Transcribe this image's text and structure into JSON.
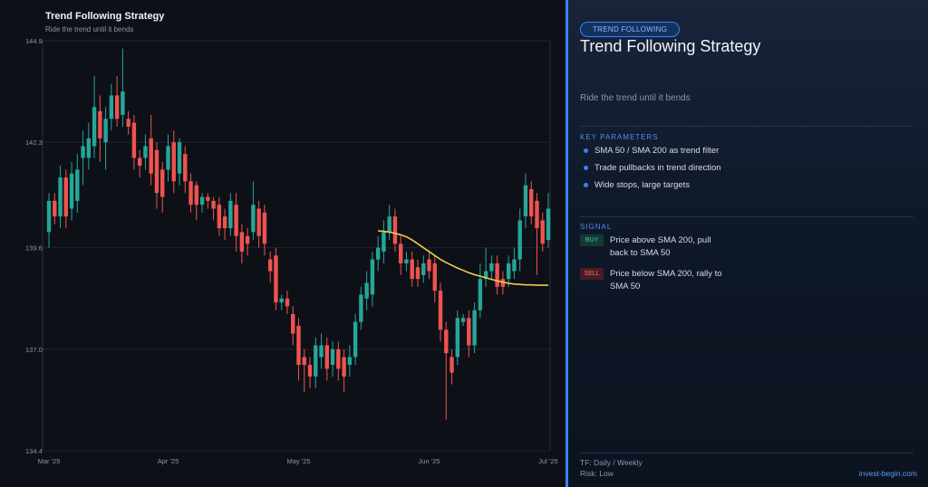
{
  "chart_data": {
    "type": "candlestick",
    "title": "Trend Following Strategy",
    "subtitle": "Ride the trend until it bends",
    "categories": [
      "Mar '25",
      null,
      null,
      null,
      null,
      null,
      null,
      null,
      null,
      null,
      null,
      null,
      null,
      null,
      null,
      null,
      null,
      null,
      null,
      null,
      null,
      "Apr '25",
      null,
      null,
      null,
      null,
      null,
      null,
      null,
      null,
      null,
      null,
      null,
      null,
      null,
      null,
      null,
      null,
      null,
      null,
      null,
      null,
      null,
      null,
      "May '25",
      null,
      null,
      null,
      null,
      null,
      null,
      null,
      null,
      null,
      null,
      null,
      null,
      null,
      null,
      null,
      null,
      null,
      null,
      null,
      null,
      null,
      null,
      "Jun '25",
      null,
      null,
      null,
      null,
      null,
      null,
      null,
      null,
      null,
      null,
      null,
      null,
      null,
      null,
      null,
      null,
      null,
      null,
      null,
      null,
      "Jul '25"
    ],
    "open": [
      140.0,
      140.8,
      140.4,
      141.4,
      140.6,
      140.8,
      141.9,
      141.9,
      142.2,
      143.1,
      142.3,
      142.9,
      143.5,
      143.0,
      142.9,
      142.8,
      141.9,
      141.9,
      142.4,
      142.1,
      141.6,
      141.6,
      142.3,
      141.5,
      142.0,
      141.3,
      141.2,
      140.7,
      140.9,
      140.8,
      140.7,
      140.4,
      140.1,
      140.7,
      140.0,
      139.9,
      140.0,
      140.6,
      140.5,
      139.3,
      139.4,
      138.2,
      138.3,
      137.9,
      137.6,
      136.8,
      136.6,
      136.3,
      136.8,
      137.1,
      136.6,
      137.0,
      136.8,
      136.6,
      136.8,
      137.7,
      138.3,
      138.4,
      139.3,
      139.5,
      140.0,
      140.4,
      139.7,
      139.2,
      139.3,
      139.1,
      138.9,
      139.3,
      139.2,
      138.5,
      137.5,
      136.8,
      136.8,
      137.7,
      137.8,
      137.1,
      138.0,
      138.8,
      139.0,
      139.2,
      138.8,
      138.8,
      139.0,
      139.3,
      140.4,
      141.1,
      140.8,
      140.3,
      139.8
    ],
    "high": [
      141.0,
      141.0,
      141.7,
      141.6,
      141.8,
      142.0,
      142.6,
      142.8,
      144.0,
      143.5,
      143.2,
      143.8,
      144.0,
      144.7,
      143.1,
      143.0,
      142.1,
      142.5,
      143.0,
      142.3,
      141.8,
      142.5,
      142.6,
      142.4,
      142.2,
      141.5,
      141.3,
      141.0,
      141.0,
      140.9,
      140.9,
      140.6,
      141.0,
      141.0,
      140.2,
      140.1,
      141.3,
      140.8,
      140.7,
      139.5,
      139.6,
      138.4,
      138.5,
      138.1,
      137.8,
      137.0,
      136.8,
      137.3,
      137.4,
      137.3,
      137.2,
      137.2,
      137.0,
      137.1,
      137.9,
      138.6,
      139.0,
      139.5,
      139.9,
      140.3,
      140.7,
      140.6,
      139.9,
      139.5,
      139.5,
      139.3,
      139.4,
      139.5,
      139.4,
      138.7,
      137.7,
      137.0,
      138.0,
      137.9,
      138.0,
      138.2,
      139.2,
      139.6,
      139.4,
      139.4,
      139.0,
      139.4,
      139.6,
      140.6,
      141.5,
      141.3,
      141.0,
      140.5,
      141.0
    ],
    "low": [
      139.6,
      140.2,
      140.1,
      140.1,
      140.3,
      140.5,
      141.2,
      141.6,
      141.9,
      141.8,
      141.6,
      142.6,
      142.7,
      142.7,
      142.5,
      141.6,
      141.4,
      141.6,
      141.2,
      140.6,
      140.5,
      141.3,
      141.0,
      141.2,
      141.0,
      140.5,
      140.3,
      140.5,
      140.6,
      140.3,
      139.9,
      139.8,
      139.9,
      139.5,
      139.2,
      139.4,
      139.8,
      139.6,
      139.4,
      138.7,
      138.0,
      138.0,
      137.9,
      137.1,
      136.2,
      135.9,
      136.0,
      136.0,
      136.5,
      136.2,
      136.3,
      136.2,
      135.9,
      136.3,
      136.6,
      137.5,
      138.0,
      138.1,
      139.0,
      139.2,
      139.8,
      139.5,
      138.9,
      139.0,
      138.6,
      138.6,
      138.7,
      138.8,
      138.2,
      137.2,
      135.2,
      136.1,
      136.6,
      137.6,
      136.8,
      136.9,
      137.8,
      138.6,
      138.8,
      138.4,
      138.4,
      138.6,
      138.8,
      139.0,
      140.1,
      140.2,
      138.9,
      139.5,
      139.6
    ],
    "close": [
      140.8,
      140.4,
      141.4,
      140.4,
      141.5,
      141.6,
      142.2,
      142.4,
      143.2,
      142.4,
      142.9,
      143.5,
      142.9,
      143.6,
      142.7,
      141.9,
      141.7,
      142.2,
      141.5,
      141.0,
      140.9,
      142.2,
      141.3,
      142.3,
      141.3,
      140.7,
      140.7,
      140.9,
      140.8,
      140.6,
      140.1,
      140.1,
      140.8,
      139.9,
      139.5,
      139.7,
      140.7,
      139.9,
      139.7,
      139.0,
      138.2,
      138.3,
      138.1,
      137.4,
      136.6,
      136.6,
      136.3,
      137.1,
      137.1,
      136.5,
      137.0,
      136.5,
      136.3,
      136.8,
      137.7,
      138.4,
      138.7,
      139.3,
      139.6,
      140.0,
      140.4,
      139.7,
      139.2,
      139.3,
      138.8,
      138.8,
      139.2,
      139.0,
      138.5,
      137.5,
      136.9,
      136.4,
      137.8,
      137.8,
      137.1,
      138.0,
      138.8,
      139.0,
      139.2,
      138.6,
      138.6,
      139.2,
      139.3,
      140.3,
      141.2,
      140.4,
      140.1,
      139.7,
      140.6
    ],
    "up_color": "#26a69a",
    "down_color": "#ef5350",
    "sma": {
      "color": "#f2c94c",
      "values": [
        null,
        null,
        null,
        null,
        null,
        null,
        null,
        null,
        null,
        null,
        null,
        null,
        null,
        null,
        null,
        null,
        null,
        null,
        null,
        null,
        null,
        null,
        null,
        null,
        null,
        null,
        null,
        null,
        null,
        null,
        null,
        null,
        null,
        null,
        null,
        null,
        null,
        null,
        null,
        null,
        null,
        null,
        null,
        null,
        null,
        null,
        null,
        null,
        null,
        null,
        null,
        null,
        null,
        null,
        null,
        null,
        null,
        null,
        140.03,
        140.02,
        140.0,
        139.97,
        139.93,
        139.88,
        139.8,
        139.7,
        139.6,
        139.5,
        139.4,
        139.3,
        139.22,
        139.15,
        139.08,
        139.02,
        138.96,
        138.91,
        138.87,
        138.83,
        138.79,
        138.75,
        138.72,
        138.69,
        138.67,
        138.66,
        138.65,
        138.65,
        138.64,
        138.64,
        138.64
      ]
    },
    "ylim": [
      134.4,
      144.9
    ],
    "yticks": [
      134.4,
      {
        "value": 137,
        "label": "137.0"
      },
      139.6,
      142.3,
      144.9
    ],
    "grid": true
  },
  "panel": {
    "badge": "TREND FOLLOWING",
    "title": "Trend Following Strategy",
    "subtitle": "Ride the trend until it bends",
    "params_heading": "KEY PARAMETERS",
    "params": [
      "SMA 50 / SMA 200 as trend filter",
      "Trade pullbacks in trend direction",
      "Wide stops, large targets"
    ],
    "signal_heading": "SIGNAL",
    "signals": [
      {
        "tag": "BUY",
        "text": "Price above SMA 200, pull back to SMA 50"
      },
      {
        "tag": "SELL",
        "text": "Price below SMA 200, rally to SMA 50"
      }
    ],
    "footer": [
      "TF: Daily / Weekly",
      "Risk: Low"
    ],
    "brand": "invest-begin.com"
  }
}
